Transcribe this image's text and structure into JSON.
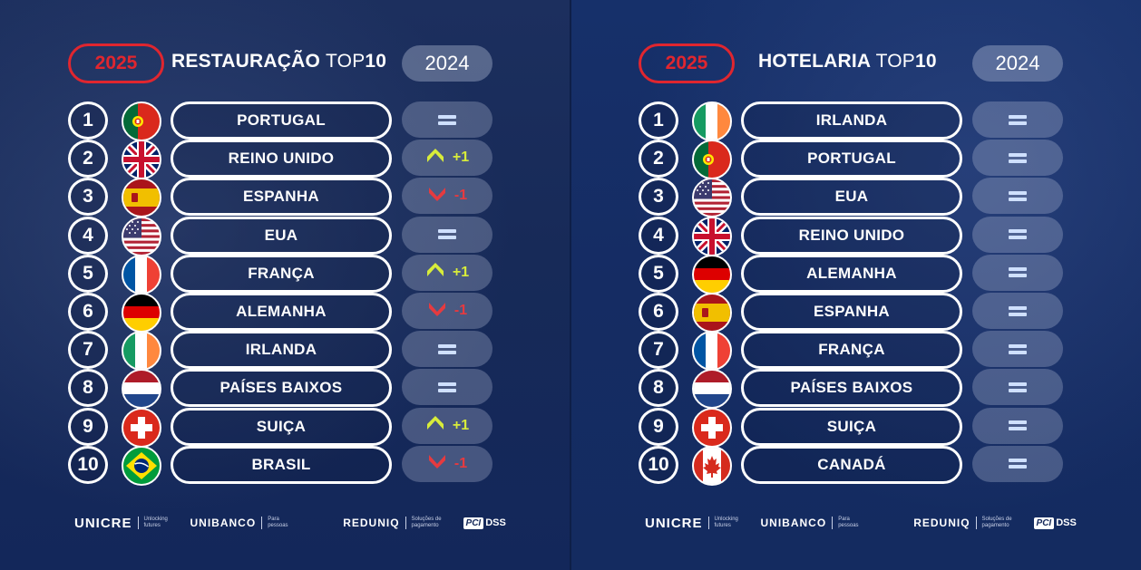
{
  "left": {
    "year_current": "2025",
    "title_bold": "RESTAURAÇÃO ",
    "title_light": "TOP",
    "title_num": "10",
    "year_prev": "2024",
    "rows": [
      {
        "rank": "1",
        "flag": "portugal",
        "country": "PORTUGAL",
        "change": "=",
        "dir": "eq"
      },
      {
        "rank": "2",
        "flag": "uk",
        "country": "REINO UNIDO",
        "change": "+1",
        "dir": "up"
      },
      {
        "rank": "3",
        "flag": "spain",
        "country": "ESPANHA",
        "change": "-1",
        "dir": "down"
      },
      {
        "rank": "4",
        "flag": "usa",
        "country": "EUA",
        "change": "=",
        "dir": "eq"
      },
      {
        "rank": "5",
        "flag": "france",
        "country": "FRANÇA",
        "change": "+1",
        "dir": "up"
      },
      {
        "rank": "6",
        "flag": "germany",
        "country": "ALEMANHA",
        "change": "-1",
        "dir": "down"
      },
      {
        "rank": "7",
        "flag": "ireland",
        "country": "IRLANDA",
        "change": "=",
        "dir": "eq"
      },
      {
        "rank": "8",
        "flag": "netherlands",
        "country": "PAÍSES BAIXOS",
        "change": "=",
        "dir": "eq"
      },
      {
        "rank": "9",
        "flag": "switzerland",
        "country": "SUIÇA",
        "change": "+1",
        "dir": "up"
      },
      {
        "rank": "10",
        "flag": "brazil",
        "country": "BRASIL",
        "change": "-1",
        "dir": "down"
      }
    ]
  },
  "right": {
    "year_current": "2025",
    "title_bold": "HOTELARIA ",
    "title_light": "TOP",
    "title_num": "10",
    "year_prev": "2024",
    "rows": [
      {
        "rank": "1",
        "flag": "ireland",
        "country": "IRLANDA",
        "change": "=",
        "dir": "eq"
      },
      {
        "rank": "2",
        "flag": "portugal",
        "country": "PORTUGAL",
        "change": "=",
        "dir": "eq"
      },
      {
        "rank": "3",
        "flag": "usa",
        "country": "EUA",
        "change": "=",
        "dir": "eq"
      },
      {
        "rank": "4",
        "flag": "uk",
        "country": "REINO UNIDO",
        "change": "=",
        "dir": "eq"
      },
      {
        "rank": "5",
        "flag": "germany",
        "country": "ALEMANHA",
        "change": "=",
        "dir": "eq"
      },
      {
        "rank": "6",
        "flag": "spain",
        "country": "ESPANHA",
        "change": "=",
        "dir": "eq"
      },
      {
        "rank": "7",
        "flag": "france",
        "country": "FRANÇA",
        "change": "=",
        "dir": "eq"
      },
      {
        "rank": "8",
        "flag": "netherlands",
        "country": "PAÍSES BAIXOS",
        "change": "=",
        "dir": "eq"
      },
      {
        "rank": "9",
        "flag": "switzerland",
        "country": "SUIÇA",
        "change": "=",
        "dir": "eq"
      },
      {
        "rank": "10",
        "flag": "canada",
        "country": "CANADÁ",
        "change": "=",
        "dir": "eq"
      }
    ]
  },
  "footer": {
    "unicre": "UNICRE",
    "unicre_sub": "Unlocking futures",
    "unibanco": "UNIBANCO",
    "unibanco_sub": "Para pessoas",
    "reduniq": "REDUNIQ",
    "reduniq_sub": "Soluções de pagamento",
    "pci": "PCI",
    "dss": "DSS"
  },
  "colors": {
    "accent_red": "#e0262f",
    "up_yellow": "#d8ec3a",
    "down_red": "#e63a3f",
    "equal_blue": "#cfe0ff"
  }
}
